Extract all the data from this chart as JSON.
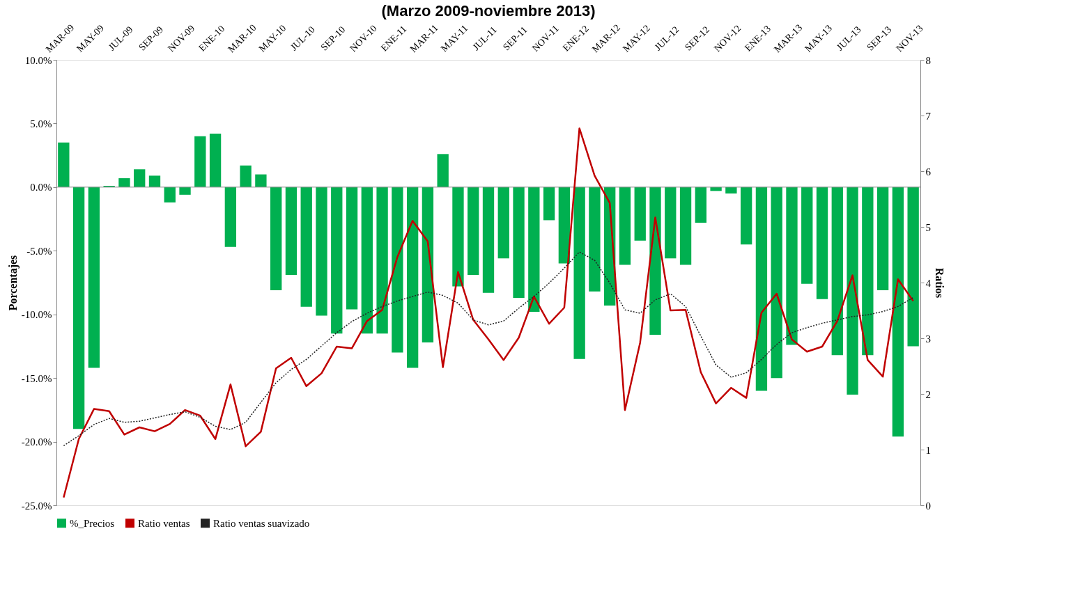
{
  "chart_data": {
    "type": "bar",
    "title": "(Marzo 2009-noviembre 2013)",
    "categories": [
      "MAR-09",
      null,
      "MAY-09",
      null,
      "JUL-09",
      null,
      "SEP-09",
      null,
      "NOV-09",
      null,
      "ENE-10",
      null,
      "MAR-10",
      null,
      "MAY-10",
      null,
      "JUL-10",
      null,
      "SEP-10",
      null,
      "NOV-10",
      null,
      "ENE-11",
      null,
      "MAR-11",
      null,
      "MAY-11",
      null,
      "JUL-11",
      null,
      "SEP-11",
      null,
      "NOV-11",
      null,
      "ENE-12",
      null,
      "MAR-12",
      null,
      "MAY-12",
      null,
      "JUL-12",
      null,
      "SEP-12",
      null,
      "NOV-12",
      null,
      "ENE-13",
      null,
      "MAR-13",
      null,
      "MAY-13",
      null,
      "JUL-13",
      null,
      "SEP-13",
      null,
      "NOV-13"
    ],
    "series": [
      {
        "name": "%_Precios",
        "type": "bar",
        "color": "#00b050",
        "values": [
          3.5,
          -19.0,
          -14.2,
          0.1,
          0.7,
          1.4,
          0.9,
          -1.2,
          -0.6,
          4.0,
          4.2,
          -4.7,
          1.7,
          1.0,
          -8.1,
          -6.9,
          -9.4,
          -10.1,
          -11.5,
          -9.6,
          -11.5,
          -11.5,
          -13.0,
          -14.2,
          -12.2,
          2.6,
          -7.8,
          -6.9,
          -8.3,
          -5.6,
          -8.7,
          -9.8,
          -2.6,
          -6.0,
          -13.5,
          -8.2,
          -9.3,
          -6.1,
          -4.2,
          -11.6,
          -5.6,
          -6.1,
          -2.8,
          -0.3,
          -0.5,
          -4.5,
          -16.0,
          -15.0,
          -12.4,
          -7.6,
          -8.8,
          -13.2,
          -16.3,
          -13.2,
          -8.1,
          -19.6,
          -12.5
        ]
      },
      {
        "name": "Ratio ventas",
        "type": "line",
        "axis": "y2",
        "color": "#c00000",
        "line_style": "solid",
        "values": [
          0.14,
          1.19,
          1.73,
          1.69,
          1.27,
          1.4,
          1.33,
          1.46,
          1.71,
          1.61,
          1.19,
          2.17,
          1.06,
          1.32,
          2.46,
          2.65,
          2.14,
          2.37,
          2.85,
          2.82,
          3.31,
          3.51,
          4.46,
          5.11,
          4.74,
          2.48,
          4.19,
          3.33,
          2.98,
          2.61,
          3.01,
          3.75,
          3.26,
          3.55,
          6.77,
          5.92,
          5.43,
          1.71,
          2.92,
          5.17,
          3.5,
          3.51,
          2.39,
          1.83,
          2.11,
          1.93,
          3.46,
          3.8,
          2.98,
          2.76,
          2.85,
          3.31,
          4.13,
          2.61,
          2.31,
          4.06,
          3.67
        ]
      },
      {
        "name": "Ratio ventas suavizado",
        "type": "line",
        "axis": "y2",
        "color": "#222222",
        "line_style": "dotted",
        "values": [
          1.07,
          1.25,
          1.45,
          1.56,
          1.49,
          1.51,
          1.57,
          1.63,
          1.68,
          1.58,
          1.42,
          1.36,
          1.49,
          1.85,
          2.2,
          2.44,
          2.62,
          2.86,
          3.1,
          3.3,
          3.45,
          3.57,
          3.67,
          3.75,
          3.83,
          3.77,
          3.63,
          3.33,
          3.24,
          3.31,
          3.54,
          3.75,
          3.99,
          4.26,
          4.55,
          4.4,
          3.99,
          3.51,
          3.45,
          3.69,
          3.8,
          3.57,
          3.04,
          2.52,
          2.3,
          2.38,
          2.62,
          2.89,
          3.1,
          3.19,
          3.27,
          3.33,
          3.39,
          3.42,
          3.48,
          3.57,
          3.73
        ]
      }
    ],
    "ylabel": "Porcentajes",
    "y2label": "Ratios",
    "ylim": [
      -25,
      10
    ],
    "yticks": [
      {
        "value": -25,
        "label": "-25.0%"
      },
      {
        "value": -20,
        "label": "-20.0%"
      },
      {
        "value": -15,
        "label": "-15.0%"
      },
      {
        "value": -10,
        "label": "-10.0%"
      },
      {
        "value": -5,
        "label": "-5.0%"
      },
      {
        "value": 0,
        "label": "0.0%"
      },
      {
        "value": 5,
        "label": "5.0%"
      },
      {
        "value": 10,
        "label": "10.0%"
      }
    ],
    "y2lim": [
      0,
      8
    ],
    "y2ticks": [
      0,
      1,
      2,
      3,
      4,
      5,
      6,
      7,
      8
    ],
    "ref_lines": [
      {
        "axis": "y",
        "value": 0,
        "color": "#888888"
      }
    ],
    "grid": false,
    "legend": "bottom"
  }
}
